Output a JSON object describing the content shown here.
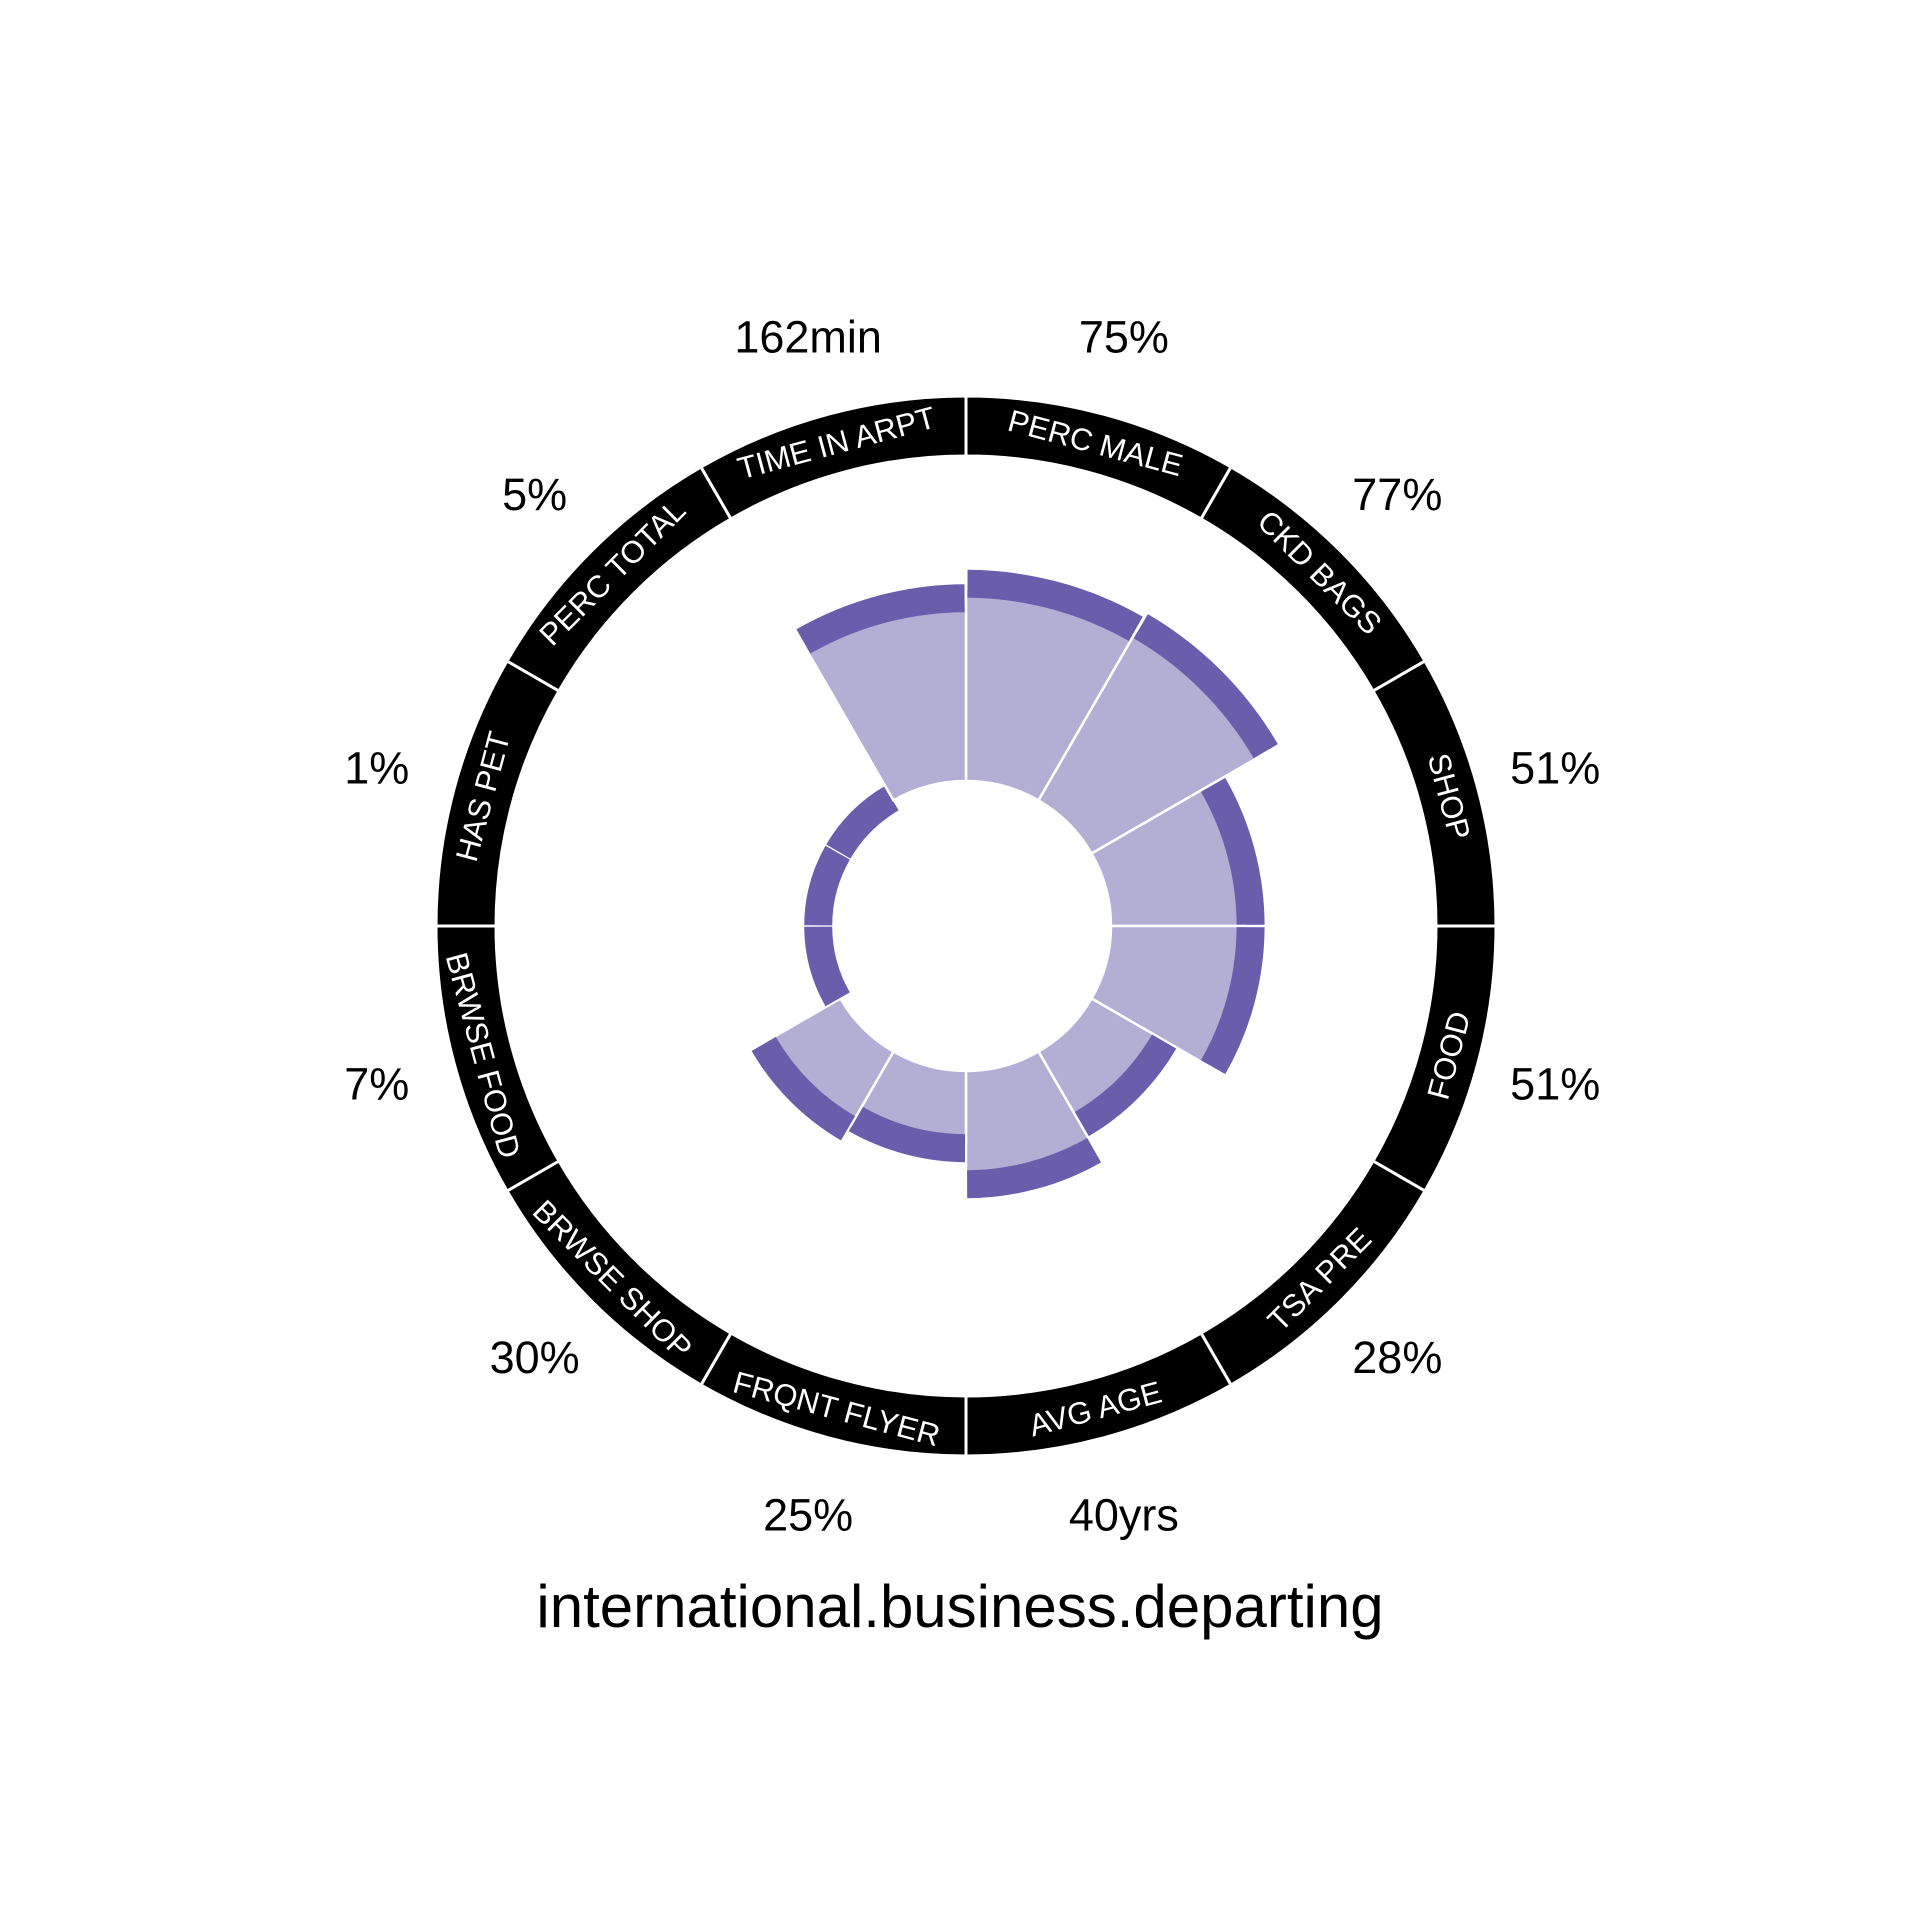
{
  "chart_data": {
    "type": "radial-bar",
    "title": "international.business.departing",
    "colors": {
      "fill": "#b3aed4",
      "cap": "#6a5eac",
      "ring": "#000000",
      "ring_text": "#ffffff",
      "background": "#ffffff"
    },
    "categories": [
      {
        "name": "PERC MALE",
        "value_label": "75%",
        "fill": 0.8,
        "cap": 0.88
      },
      {
        "name": "CKD BAGS",
        "value_label": "77%",
        "fill": 0.82,
        "cap": 0.9
      },
      {
        "name": "SHOP",
        "value_label": "51%",
        "fill": 0.56,
        "cap": 0.64
      },
      {
        "name": "FOOD",
        "value_label": "51%",
        "fill": 0.56,
        "cap": 0.64
      },
      {
        "name": "TSA PRE",
        "value_label": "28%",
        "fill": 0.33,
        "cap": 0.41
      },
      {
        "name": "AVG AGE",
        "value_label": "40yrs",
        "fill": 0.45,
        "cap": 0.53
      },
      {
        "name": "FRQNT FLYER",
        "value_label": "25%",
        "fill": 0.3,
        "cap": 0.38
      },
      {
        "name": "BRWSE SHOP",
        "value_label": "30%",
        "fill": 0.35,
        "cap": 0.43
      },
      {
        "name": "BRWSE FOOD",
        "value_label": "7%",
        "fill": 0.0,
        "cap": 0.07
      },
      {
        "name": "HAS PET",
        "value_label": "1%",
        "fill": 0.0,
        "cap": 0.07
      },
      {
        "name": "PERC TOTAL",
        "value_label": "5%",
        "fill": 0.0,
        "cap": 0.07
      },
      {
        "name": "TIME IN ARPT",
        "value_label": "162min",
        "fill": 0.74,
        "cap": 0.82
      }
    ]
  }
}
